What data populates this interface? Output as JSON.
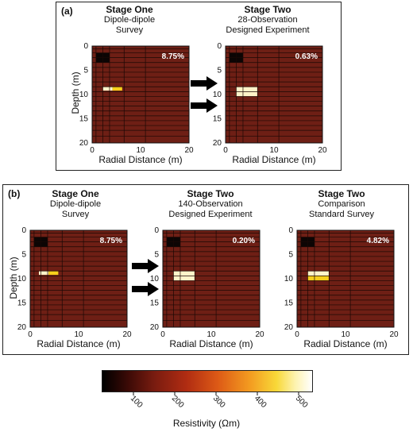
{
  "colors": {
    "background_cell": "#6e1f15",
    "grid_line": "#1a0805",
    "dark_cell": "#0c0504",
    "light_cell": "#fff3c9",
    "yellow_cell": "#f6cf1c"
  },
  "panel_a": {
    "label": "(a)",
    "plots": [
      {
        "id": "a1",
        "title": "Stage One",
        "line1": "Dipole-dipole",
        "line2": "Survey",
        "percent": "8.75%",
        "xlabel": "Radial Distance (m)",
        "ylabel": "Depth (m)"
      },
      {
        "id": "a2",
        "title": "Stage Two",
        "line1": "28-Observation",
        "line2": "Designed Experiment",
        "percent": "0.63%",
        "xlabel": "Radial Distance (m)",
        "ylabel": ""
      }
    ]
  },
  "panel_b": {
    "label": "(b)",
    "plots": [
      {
        "id": "b1",
        "title": "Stage One",
        "line1": "Dipole-dipole",
        "line2": "Survey",
        "percent": "8.75%",
        "xlabel": "Radial Distance (m)",
        "ylabel": "Depth (m)"
      },
      {
        "id": "b2",
        "title": "Stage Two",
        "line1": "140-Observation",
        "line2": "Designed Experiment",
        "percent": "0.20%",
        "xlabel": "Radial Distance (m)",
        "ylabel": ""
      },
      {
        "id": "b3",
        "title": "Stage Two",
        "line1": "Comparison",
        "line2": "Standard Survey",
        "percent": "4.82%",
        "xlabel": "Radial Distance (m)",
        "ylabel": ""
      }
    ]
  },
  "axes": {
    "x_ticks": [
      "0",
      "10",
      "20"
    ],
    "y_ticks": [
      "0",
      "5",
      "10",
      "15",
      "20"
    ]
  },
  "colorbar": {
    "ticks": [
      "100",
      "200",
      "300",
      "400",
      "500"
    ],
    "label": "Resistivity (Ωm)"
  }
}
